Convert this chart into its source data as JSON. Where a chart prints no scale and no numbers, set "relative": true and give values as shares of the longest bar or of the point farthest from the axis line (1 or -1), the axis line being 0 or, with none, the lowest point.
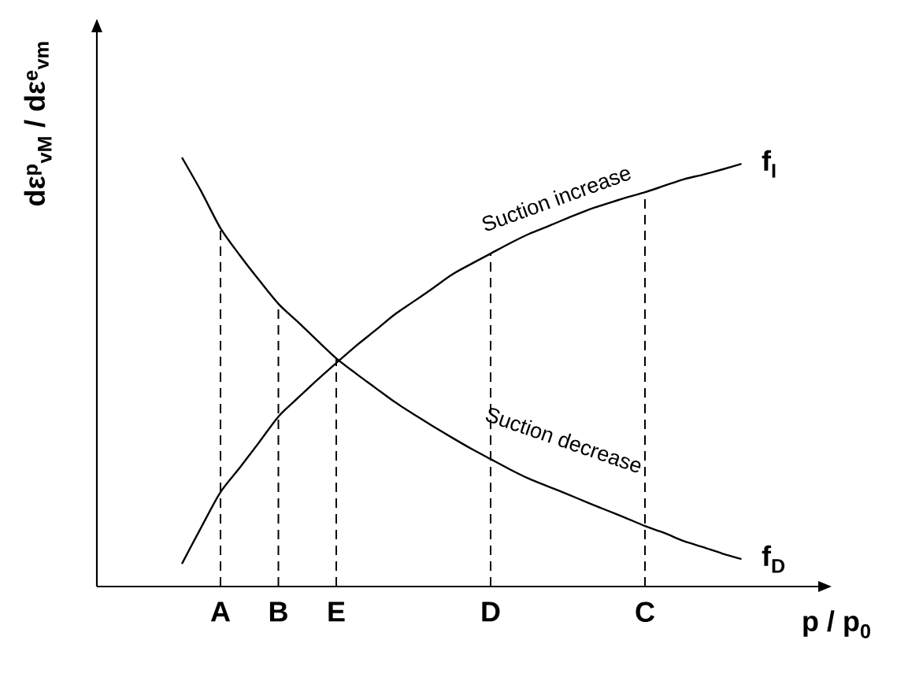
{
  "chart_data": {
    "type": "line",
    "relative": true,
    "tick_labels": "x",
    "legend": false,
    "xlabel": "p / p$_{0}$",
    "ylabel": "dε$^{p}$$_{vM}$ / dε$^{e}$$_{vm}$",
    "categories": [
      null,
      null,
      "A",
      null,
      null,
      "B",
      null,
      null,
      "E",
      null,
      null,
      null,
      null,
      null,
      null,
      null,
      "D",
      null,
      null,
      null,
      null,
      null,
      null,
      null,
      "C",
      null,
      null,
      null,
      null,
      null
    ],
    "series": [
      {
        "name": "f$_{D}$",
        "color": "#000000",
        "values": [
          1.0,
          0.921,
          0.835,
          0.772,
          0.714,
          0.659,
          0.617,
          0.574,
          0.532,
          0.497,
          0.464,
          0.431,
          0.402,
          0.374,
          0.347,
          0.321,
          0.297,
          0.273,
          0.251,
          0.233,
          0.215,
          0.196,
          0.178,
          0.16,
          0.141,
          0.125,
          0.106,
          0.092,
          0.077,
          0.064
        ]
      },
      {
        "name": "f$_{I}$",
        "color": "#000000",
        "values": [
          0.053,
          0.138,
          0.22,
          0.277,
          0.336,
          0.396,
          0.439,
          0.481,
          0.521,
          0.56,
          0.596,
          0.633,
          0.664,
          0.695,
          0.727,
          0.752,
          0.776,
          0.8,
          0.822,
          0.84,
          0.859,
          0.877,
          0.892,
          0.906,
          0.919,
          0.934,
          0.949,
          0.96,
          0.972,
          0.985
        ]
      }
    ],
    "ref_lines": [
      {
        "axis": "x",
        "value": "A",
        "line_style": "dashed"
      },
      {
        "axis": "x",
        "value": "B",
        "line_style": "dashed"
      },
      {
        "axis": "x",
        "value": "E",
        "line_style": "dashed"
      },
      {
        "axis": "x",
        "value": "D",
        "line_style": "dashed"
      },
      {
        "axis": "x",
        "value": "C",
        "line_style": "dashed"
      }
    ],
    "annotations": [
      "Suction increase",
      "Suction decrease"
    ]
  }
}
